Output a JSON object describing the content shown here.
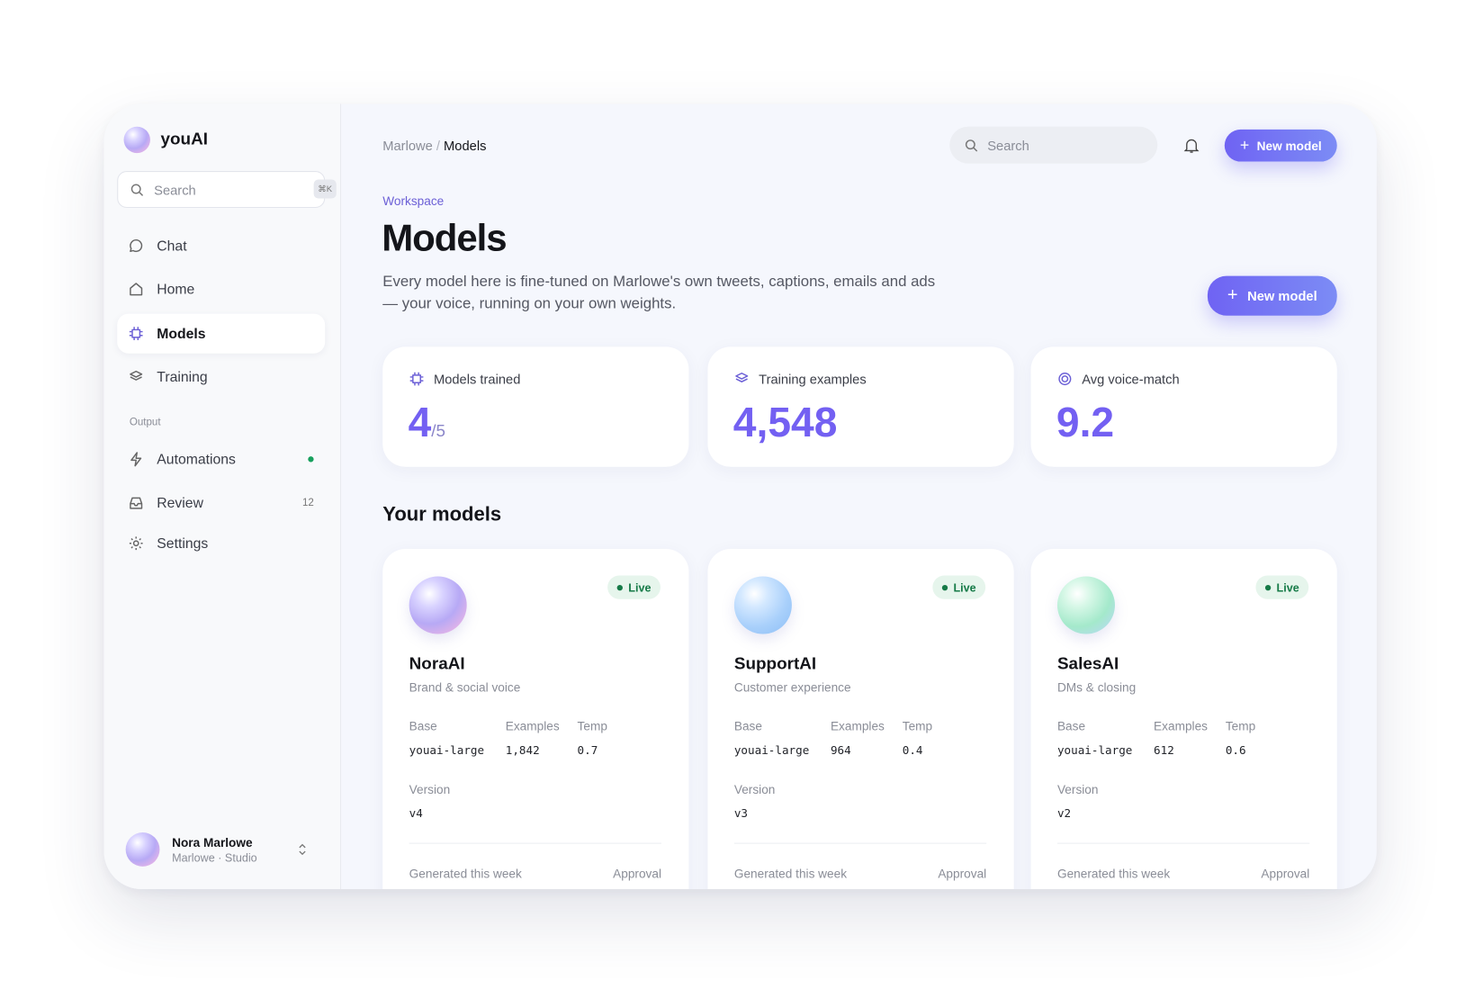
{
  "brand": {
    "name": "youAI"
  },
  "sidebar": {
    "search": {
      "placeholder": "Search",
      "shortcut": "⌘K"
    },
    "nav": [
      {
        "label": "Chat"
      },
      {
        "label": "Home"
      },
      {
        "label": "Models"
      },
      {
        "label": "Training"
      }
    ],
    "section": "Output",
    "output_nav": [
      {
        "label": "Automations"
      },
      {
        "label": "Review",
        "badge": "12"
      },
      {
        "label": "Settings"
      }
    ],
    "user": {
      "name": "Nora Marlowe",
      "subtitle": "Marlowe · Studio"
    }
  },
  "header": {
    "breadcrumb": [
      "Marlowe",
      "Models"
    ],
    "separator": "/",
    "search_placeholder": "Search",
    "button": "New model"
  },
  "page": {
    "eyebrow": "Workspace",
    "title": "Models",
    "description": "Every model here is fine-tuned on Marlowe's own tweets, captions, emails and ads — your voice, running on your own weights.",
    "button": "New model"
  },
  "stats": [
    {
      "label": "Models trained",
      "value": "4",
      "suffix": "/5"
    },
    {
      "label": "Training examples",
      "value": "4,548"
    },
    {
      "label": "Avg voice-match",
      "value": "9.2"
    }
  ],
  "section_title": "Your models",
  "models": [
    {
      "name": "NoraAI",
      "subtitle": "Brand & social voice",
      "status": "Live",
      "base_label": "Base",
      "base": "youai-large",
      "examples_label": "Examples",
      "examples": "1,842",
      "temp_label": "Temp",
      "temp": "0.7",
      "version_label": "Version",
      "version": "v4",
      "footer_left": "Generated this week",
      "footer_right": "Approval"
    },
    {
      "name": "SupportAI",
      "subtitle": "Customer experience",
      "status": "Live",
      "base_label": "Base",
      "base": "youai-large",
      "examples_label": "Examples",
      "examples": "964",
      "temp_label": "Temp",
      "temp": "0.4",
      "version_label": "Version",
      "version": "v3",
      "footer_left": "Generated this week",
      "footer_right": "Approval"
    },
    {
      "name": "SalesAI",
      "subtitle": "DMs & closing",
      "status": "Live",
      "base_label": "Base",
      "base": "youai-large",
      "examples_label": "Examples",
      "examples": "612",
      "temp_label": "Temp",
      "temp": "0.6",
      "version_label": "Version",
      "version": "v2",
      "footer_left": "Generated this week",
      "footer_right": "Approval"
    }
  ]
}
